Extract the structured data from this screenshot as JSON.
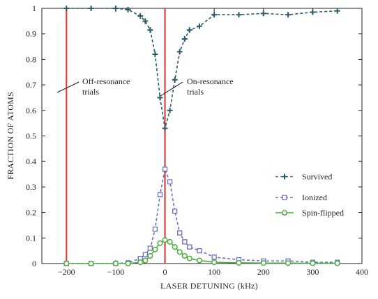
{
  "chart_data": {
    "type": "line",
    "xlabel": "LASER DETUNING (kHz)",
    "ylabel": "FRACTION OF ATOMS",
    "xlim": [
      -250,
      400
    ],
    "ylim": [
      0,
      1
    ],
    "x_ticks": [
      -200,
      -100,
      0,
      100,
      200,
      300,
      400
    ],
    "x_tick_labels": [
      "−200",
      "−100",
      "0",
      "100",
      "200",
      "300",
      "400"
    ],
    "y_ticks": [
      0,
      0.1,
      0.2,
      0.3,
      0.4,
      0.5,
      0.6,
      0.7,
      0.8,
      0.9,
      1
    ],
    "y_tick_labels": [
      "0",
      "0.1",
      "0.2",
      "0.3",
      "0.4",
      "0.5",
      "0.6",
      "0.7",
      "0.8",
      "0.9",
      "1"
    ],
    "grid": false,
    "legend_position": "right-center",
    "vertical_lines": [
      {
        "x": -200,
        "color": "#d9413b"
      },
      {
        "x": 0,
        "color": "#d9413b"
      }
    ],
    "annotations": [
      {
        "lines": [
          "Off-resonance",
          "trials"
        ],
        "points_to_x": -200
      },
      {
        "lines": [
          "On-resonance",
          "trials"
        ],
        "points_to_x": 0
      }
    ],
    "series": [
      {
        "name": "Survived",
        "color": "#2c5a66",
        "marker": "plus",
        "line": "dashed",
        "x": [
          -200,
          -150,
          -100,
          -75,
          -50,
          -40,
          -30,
          -20,
          -10,
          0,
          10,
          20,
          30,
          40,
          50,
          70,
          100,
          150,
          200,
          250,
          300,
          350
        ],
        "y": [
          1.0,
          1.0,
          1.0,
          0.995,
          0.97,
          0.95,
          0.915,
          0.82,
          0.65,
          0.53,
          0.6,
          0.72,
          0.83,
          0.88,
          0.915,
          0.93,
          0.975,
          0.975,
          0.98,
          0.975,
          0.985,
          0.99
        ]
      },
      {
        "name": "Ionized",
        "color": "#6a6fc4",
        "marker": "square",
        "line": "dashed",
        "x": [
          -200,
          -150,
          -100,
          -75,
          -50,
          -40,
          -30,
          -20,
          -10,
          0,
          10,
          20,
          30,
          40,
          50,
          70,
          100,
          150,
          200,
          250,
          300,
          350
        ],
        "y": [
          0.0,
          0.0,
          0.0,
          0.003,
          0.02,
          0.035,
          0.06,
          0.135,
          0.27,
          0.37,
          0.32,
          0.205,
          0.12,
          0.085,
          0.065,
          0.05,
          0.025,
          0.015,
          0.01,
          0.01,
          0.005,
          0.005
        ]
      },
      {
        "name": "Spin-flipped",
        "color": "#4cad3c",
        "marker": "circle",
        "line": "solid",
        "x": [
          -200,
          -150,
          -100,
          -75,
          -50,
          -40,
          -30,
          -20,
          -10,
          0,
          10,
          20,
          30,
          40,
          50,
          70,
          100,
          150,
          200,
          250,
          300,
          350
        ],
        "y": [
          0.0,
          0.0,
          0.0,
          0.0,
          0.005,
          0.012,
          0.03,
          0.055,
          0.08,
          0.092,
          0.085,
          0.065,
          0.045,
          0.03,
          0.02,
          0.012,
          0.005,
          0.003,
          0.002,
          0.002,
          0.001,
          0.001
        ]
      }
    ]
  }
}
